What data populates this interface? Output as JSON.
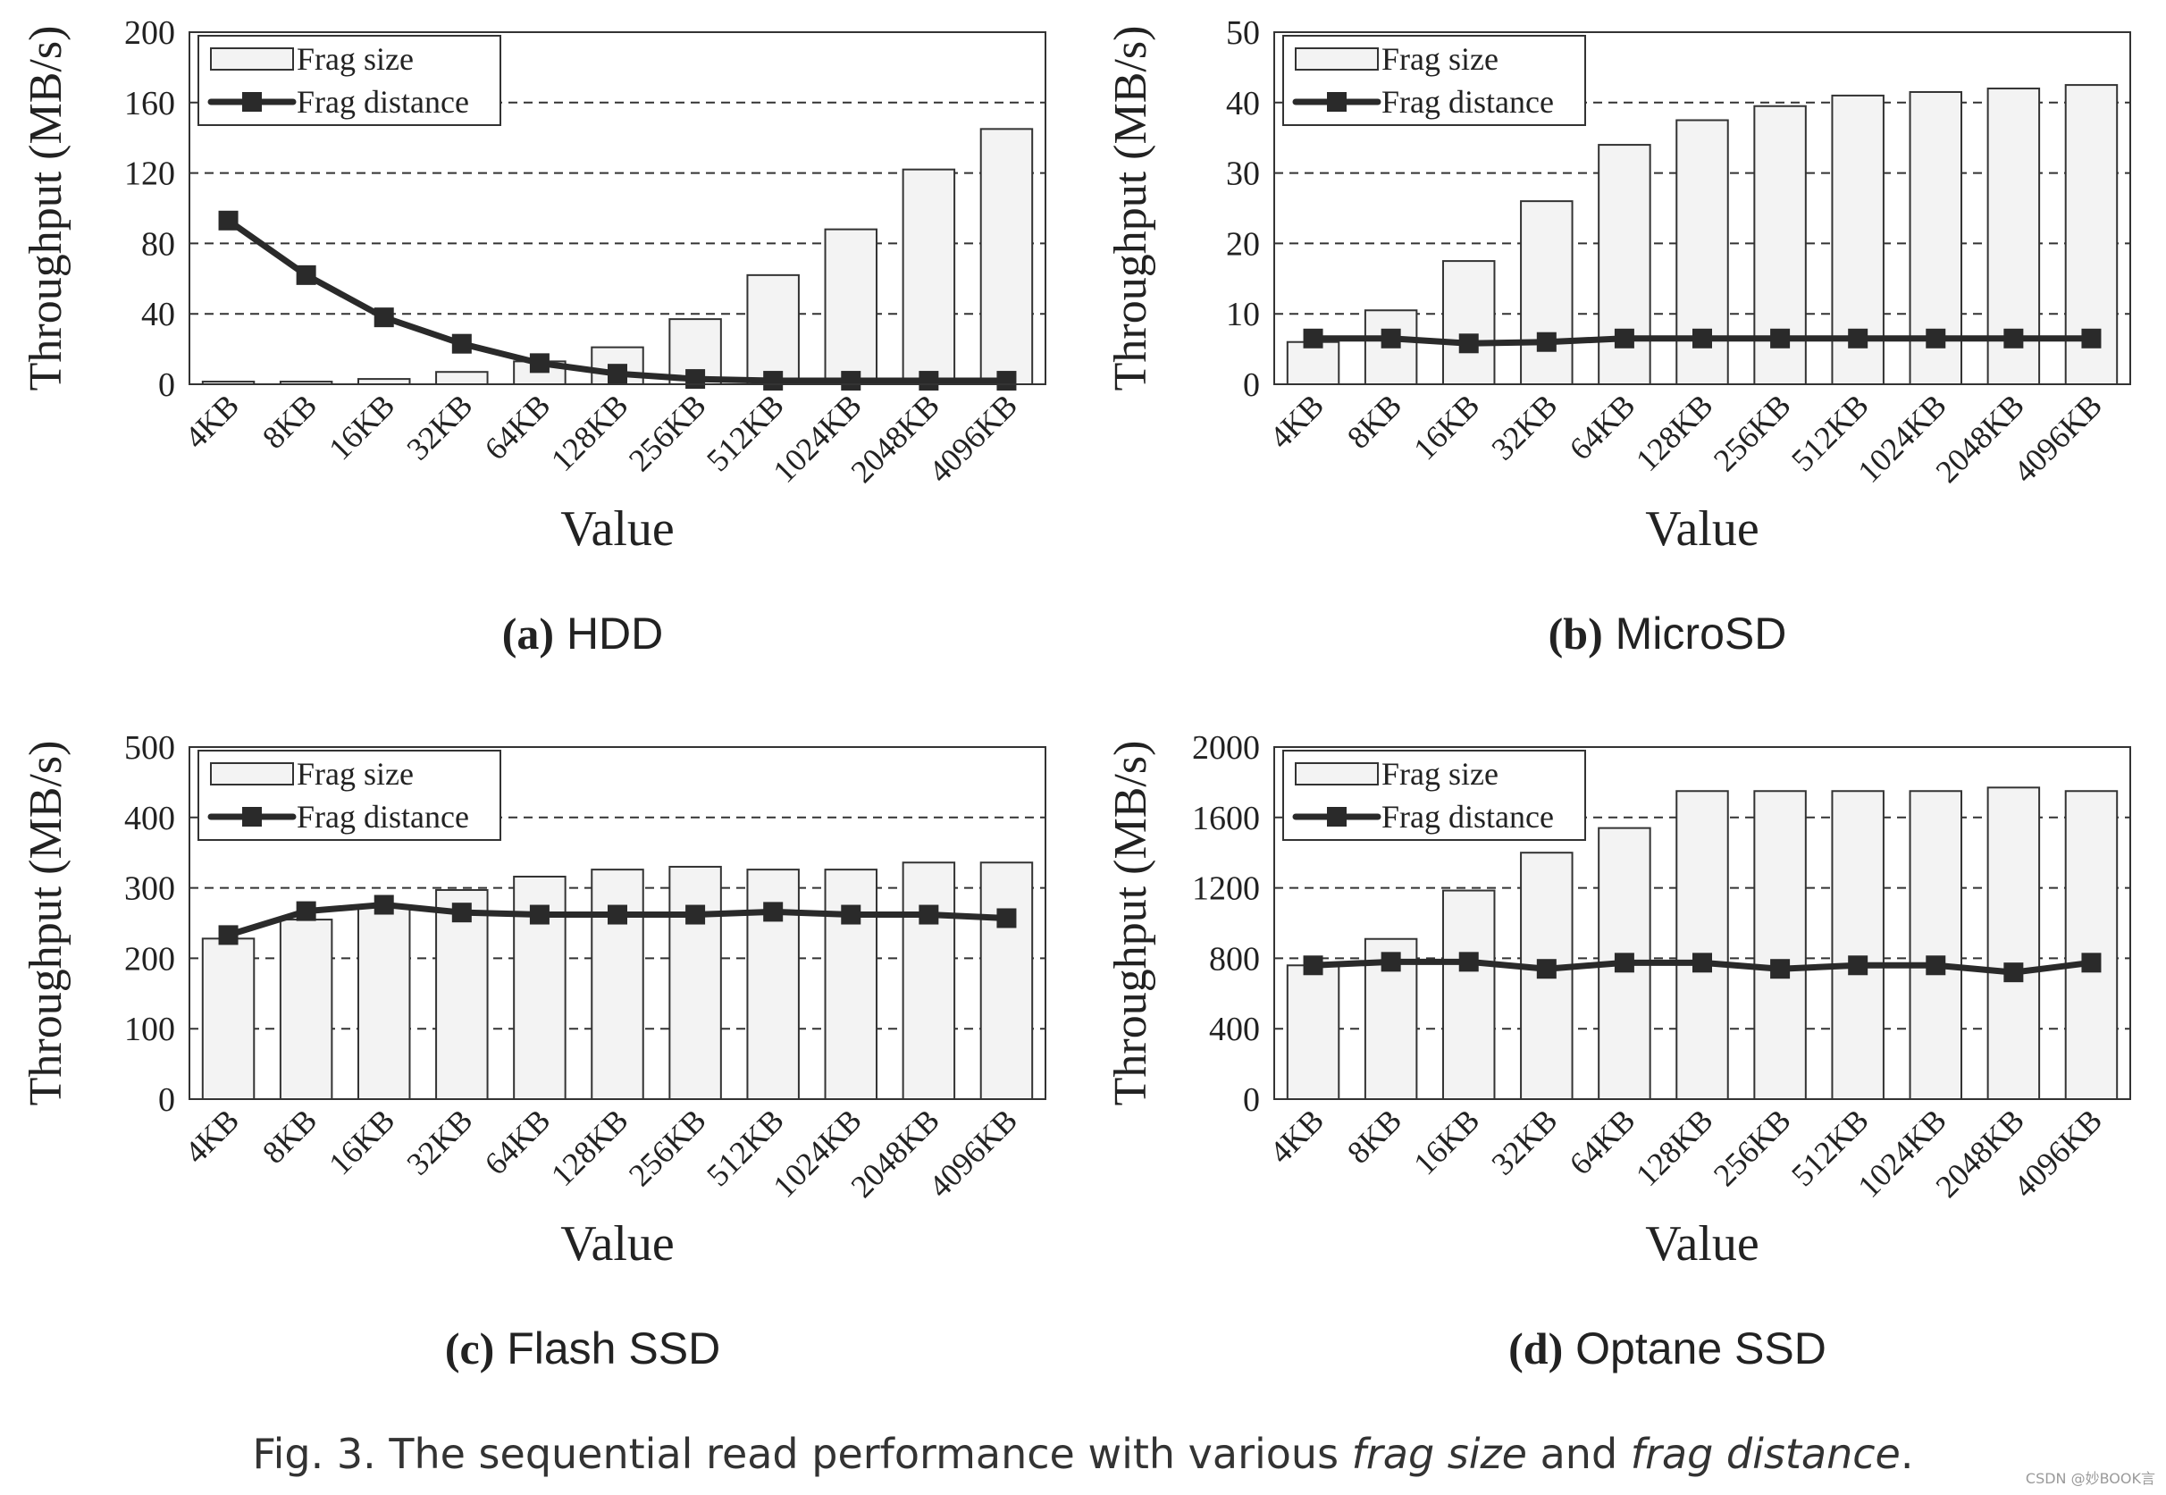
{
  "chart_data": [
    {
      "id": "hdd",
      "type": "bar+line",
      "title": "HDD",
      "label": "(a)",
      "xlabel": "Value",
      "ylabel": "Throughput (MB/s)",
      "categories": [
        "4KB",
        "8KB",
        "16KB",
        "32KB",
        "64KB",
        "128KB",
        "256KB",
        "512KB",
        "1024KB",
        "2048KB",
        "4096KB"
      ],
      "ylim": [
        0,
        200
      ],
      "yticks": [
        0,
        40,
        80,
        120,
        160,
        200
      ],
      "grid": true,
      "legend": {
        "position": "top-left",
        "entries": [
          "Frag size",
          "Frag distance"
        ]
      },
      "series": [
        {
          "name": "Frag size",
          "kind": "bar",
          "values": [
            1.5,
            1.5,
            3,
            7,
            13,
            21,
            37,
            62,
            88,
            122,
            145
          ]
        },
        {
          "name": "Frag distance",
          "kind": "line",
          "values": [
            93,
            62,
            38,
            23,
            12,
            6,
            3,
            2,
            2,
            2,
            2
          ]
        }
      ]
    },
    {
      "id": "microsd",
      "type": "bar+line",
      "title": "MicroSD",
      "label": "(b)",
      "xlabel": "Value",
      "ylabel": "Throughput (MB/s)",
      "categories": [
        "4KB",
        "8KB",
        "16KB",
        "32KB",
        "64KB",
        "128KB",
        "256KB",
        "512KB",
        "1024KB",
        "2048KB",
        "4096KB"
      ],
      "ylim": [
        0,
        50
      ],
      "yticks": [
        0,
        10,
        20,
        30,
        40,
        50
      ],
      "grid": true,
      "legend": {
        "position": "top-left",
        "entries": [
          "Frag size",
          "Frag distance"
        ]
      },
      "series": [
        {
          "name": "Frag size",
          "kind": "bar",
          "values": [
            6,
            10.5,
            17.5,
            26,
            34,
            37.5,
            39.5,
            41,
            41.5,
            42,
            42.5
          ]
        },
        {
          "name": "Frag distance",
          "kind": "line",
          "values": [
            6.5,
            6.5,
            5.8,
            6,
            6.5,
            6.5,
            6.5,
            6.5,
            6.5,
            6.5,
            6.5
          ]
        }
      ]
    },
    {
      "id": "flash",
      "type": "bar+line",
      "title": "Flash SSD",
      "label": "(c)",
      "xlabel": "Value",
      "ylabel": "Throughput (MB/s)",
      "categories": [
        "4KB",
        "8KB",
        "16KB",
        "32KB",
        "64KB",
        "128KB",
        "256KB",
        "512KB",
        "1024KB",
        "2048KB",
        "4096KB"
      ],
      "ylim": [
        0,
        500
      ],
      "yticks": [
        0,
        100,
        200,
        300,
        400,
        500
      ],
      "grid": true,
      "legend": {
        "position": "top-left",
        "entries": [
          "Frag size",
          "Frag distance"
        ]
      },
      "series": [
        {
          "name": "Frag size",
          "kind": "bar",
          "values": [
            228,
            255,
            275,
            297,
            316,
            326,
            330,
            326,
            326,
            336,
            336
          ]
        },
        {
          "name": "Frag distance",
          "kind": "line",
          "values": [
            233,
            267,
            276,
            265,
            262,
            262,
            262,
            266,
            262,
            262,
            257
          ]
        }
      ]
    },
    {
      "id": "optane",
      "type": "bar+line",
      "title": "Optane SSD",
      "label": "(d)",
      "xlabel": "Value",
      "ylabel": "Throughput (MB/s)",
      "categories": [
        "4KB",
        "8KB",
        "16KB",
        "32KB",
        "64KB",
        "128KB",
        "256KB",
        "512KB",
        "1024KB",
        "2048KB",
        "4096KB"
      ],
      "ylim": [
        0,
        2000
      ],
      "yticks": [
        0,
        400,
        800,
        1200,
        1600,
        2000
      ],
      "grid": true,
      "legend": {
        "position": "top-left",
        "entries": [
          "Frag size",
          "Frag distance"
        ]
      },
      "series": [
        {
          "name": "Frag size",
          "kind": "bar",
          "values": [
            760,
            910,
            1185,
            1400,
            1540,
            1750,
            1750,
            1750,
            1750,
            1770,
            1750
          ]
        },
        {
          "name": "Frag distance",
          "kind": "line",
          "values": [
            760,
            780,
            780,
            740,
            775,
            775,
            740,
            760,
            760,
            720,
            775
          ]
        }
      ]
    }
  ],
  "caption": {
    "prefix": "Fig. 3.  The sequential read performance with various ",
    "term1": "frag size",
    "middle": " and ",
    "term2": "frag distance",
    "suffix": "."
  },
  "watermark": "CSDN @妙BOOK言",
  "colors": {
    "bar_fill": "#f3f3f3",
    "bar_stroke": "#333333",
    "line": "#2a2a2a",
    "marker": "#2a2a2a",
    "grid": "#333333",
    "text": "#222222"
  }
}
